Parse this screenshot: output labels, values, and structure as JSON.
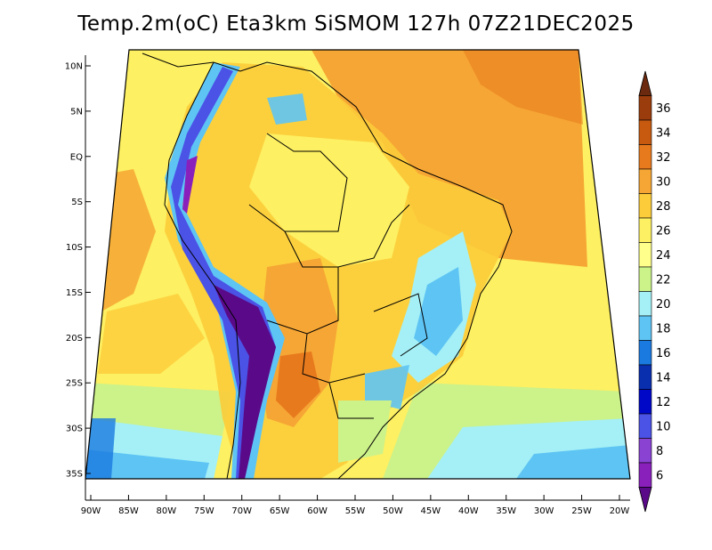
{
  "title": "Temp.2m(oC) Eta3km SiSMOM 127h 07Z21DEC2025",
  "lat_labels": [
    "10N",
    "5N",
    "EQ",
    "5S",
    "10S",
    "15S",
    "20S",
    "25S",
    "30S",
    "35S"
  ],
  "lat_values": [
    10,
    5,
    0,
    -5,
    -10,
    -15,
    -20,
    -25,
    -30,
    -35
  ],
  "lon_labels": [
    "90W",
    "85W",
    "80W",
    "75W",
    "70W",
    "65W",
    "60W",
    "55W",
    "50W",
    "45W",
    "40W",
    "35W",
    "30W",
    "25W",
    "20W"
  ],
  "lon_values": [
    -90,
    -85,
    -80,
    -75,
    -70,
    -65,
    -60,
    -55,
    -50,
    -45,
    -40,
    -35,
    -30,
    -25,
    -20
  ],
  "colorbar": {
    "labels": [
      "36",
      "34",
      "32",
      "30",
      "28",
      "26",
      "24",
      "22",
      "20",
      "18",
      "16",
      "14",
      "12",
      "10",
      "8",
      "6"
    ],
    "colors": [
      "#6b2a0f",
      "#9a3c0c",
      "#c85a10",
      "#e87a1e",
      "#f6a634",
      "#fccc3a",
      "#fdf062",
      "#ffff8c",
      "#ccf28a",
      "#a4f0f6",
      "#5ec4f4",
      "#1a7ae0",
      "#0a2fae",
      "#0008c8",
      "#4b52e6",
      "#8a42d2",
      "#8a20bc",
      "#5a0a88"
    ]
  }
}
